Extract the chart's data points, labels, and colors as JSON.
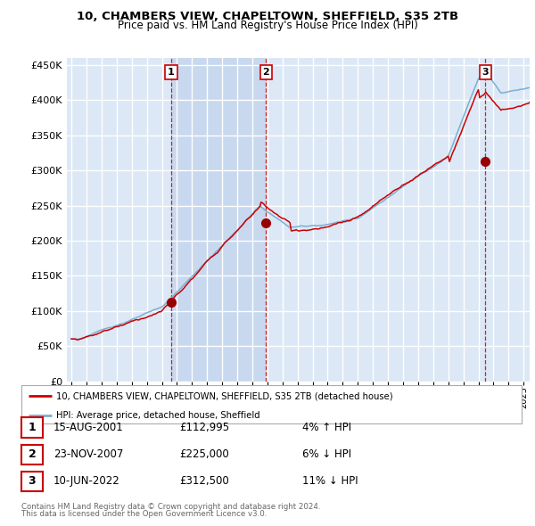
{
  "title": "10, CHAMBERS VIEW, CHAPELTOWN, SHEFFIELD, S35 2TB",
  "subtitle": "Price paid vs. HM Land Registry's House Price Index (HPI)",
  "legend_line1": "10, CHAMBERS VIEW, CHAPELTOWN, SHEFFIELD, S35 2TB (detached house)",
  "legend_line2": "HPI: Average price, detached house, Sheffield",
  "footer1": "Contains HM Land Registry data © Crown copyright and database right 2024.",
  "footer2": "This data is licensed under the Open Government Licence v3.0.",
  "table": [
    {
      "num": "1",
      "date": "15-AUG-2001",
      "price": "£112,995",
      "hpi": "4% ↑ HPI"
    },
    {
      "num": "2",
      "date": "23-NOV-2007",
      "price": "£225,000",
      "hpi": "6% ↓ HPI"
    },
    {
      "num": "3",
      "date": "10-JUN-2022",
      "price": "£312,500",
      "hpi": "11% ↓ HPI"
    }
  ],
  "sale_points": [
    {
      "year": 2001.62,
      "value": 112995,
      "label": "1"
    },
    {
      "year": 2007.9,
      "value": 225000,
      "label": "2"
    },
    {
      "year": 2022.45,
      "value": 312500,
      "label": "3"
    }
  ],
  "vlines": [
    2001.62,
    2007.9,
    2022.45
  ],
  "ylim": [
    0,
    460000
  ],
  "yticks": [
    0,
    50000,
    100000,
    150000,
    200000,
    250000,
    300000,
    350000,
    400000,
    450000
  ],
  "line_color_red": "#cc0000",
  "line_color_blue": "#7bafd4",
  "vline_color": "#cc0000",
  "grid_color": "#ffffff",
  "plot_bg": "#dce8f5",
  "shaded_bg": "#c8d8ee"
}
